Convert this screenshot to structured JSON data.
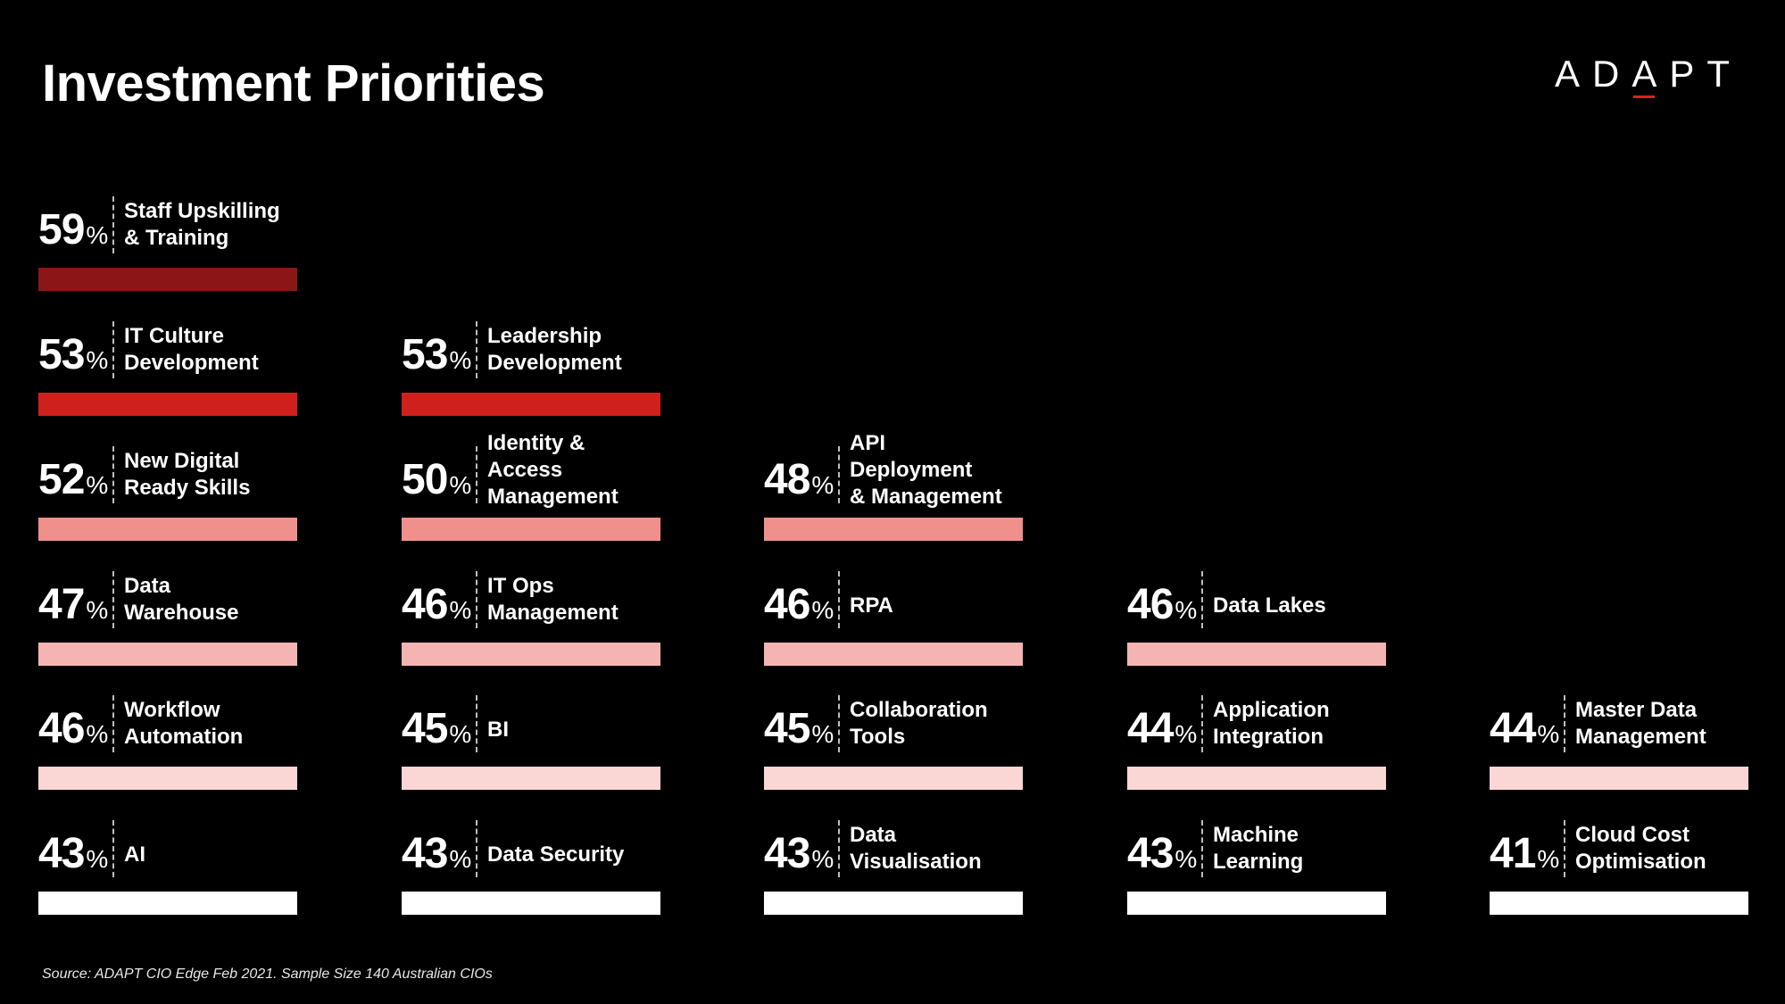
{
  "title": "Investment Priorities",
  "logo": {
    "pre": "AD",
    "peak": "A",
    "post": "PT",
    "accent_color": "#e0201c"
  },
  "source": "Source: ADAPT CIO Edge Feb 2021. Sample Size 140 Australian CIOs",
  "chart_data": {
    "type": "bar",
    "title": "Investment Priorities",
    "unit": "%",
    "items": [
      {
        "value": 59,
        "label": "Staff Upskilling\n& Training",
        "row": 0,
        "col": 0,
        "color": "#8b1618"
      },
      {
        "value": 53,
        "label": "IT Culture\nDevelopment",
        "row": 1,
        "col": 0,
        "color": "#d0201d"
      },
      {
        "value": 53,
        "label": "Leadership\nDevelopment",
        "row": 1,
        "col": 1,
        "color": "#d0201d"
      },
      {
        "value": 52,
        "label": "New Digital\nReady Skills",
        "row": 2,
        "col": 0,
        "color": "#f0908c"
      },
      {
        "value": 50,
        "label": "Identity &\nAccess\nManagement",
        "row": 2,
        "col": 1,
        "color": "#f0908c"
      },
      {
        "value": 48,
        "label": "API\nDeployment\n& Management",
        "row": 2,
        "col": 2,
        "color": "#f0908c"
      },
      {
        "value": 47,
        "label": "Data\nWarehouse",
        "row": 3,
        "col": 0,
        "color": "#f4b4b2"
      },
      {
        "value": 46,
        "label": "IT Ops\nManagement",
        "row": 3,
        "col": 1,
        "color": "#f4b4b2"
      },
      {
        "value": 46,
        "label": "RPA",
        "row": 3,
        "col": 2,
        "color": "#f4b4b2"
      },
      {
        "value": 46,
        "label": "Data Lakes",
        "row": 3,
        "col": 3,
        "color": "#f4b4b2"
      },
      {
        "value": 46,
        "label": "Workflow\nAutomation",
        "row": 4,
        "col": 0,
        "color": "#fad6d5"
      },
      {
        "value": 45,
        "label": "BI",
        "row": 4,
        "col": 1,
        "color": "#fad6d5"
      },
      {
        "value": 45,
        "label": "Collaboration\nTools",
        "row": 4,
        "col": 2,
        "color": "#fad6d5"
      },
      {
        "value": 44,
        "label": "Application\nIntegration",
        "row": 4,
        "col": 3,
        "color": "#fad6d5"
      },
      {
        "value": 44,
        "label": "Master Data\nManagement",
        "row": 4,
        "col": 4,
        "color": "#fad6d5"
      },
      {
        "value": 43,
        "label": "AI",
        "row": 5,
        "col": 0,
        "color": "#ffffff"
      },
      {
        "value": 43,
        "label": "Data Security",
        "row": 5,
        "col": 1,
        "color": "#ffffff"
      },
      {
        "value": 43,
        "label": "Data\nVisualisation",
        "row": 5,
        "col": 2,
        "color": "#ffffff"
      },
      {
        "value": 43,
        "label": "Machine\nLearning",
        "row": 5,
        "col": 3,
        "color": "#ffffff"
      },
      {
        "value": 41,
        "label": "Cloud Cost\nOptimisation",
        "row": 5,
        "col": 4,
        "color": "#ffffff"
      }
    ]
  }
}
